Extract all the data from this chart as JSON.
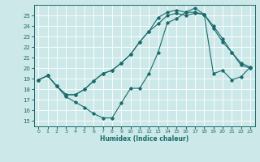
{
  "xlabel": "Humidex (Indice chaleur)",
  "bg_color": "#cce8e8",
  "line_color": "#1a6b6b",
  "grid_color": "#ffffff",
  "xlim": [
    -0.5,
    23.5
  ],
  "ylim": [
    14.5,
    26.0
  ],
  "xticks": [
    0,
    1,
    2,
    3,
    4,
    5,
    6,
    7,
    8,
    9,
    10,
    11,
    12,
    13,
    14,
    15,
    16,
    17,
    18,
    19,
    20,
    21,
    22,
    23
  ],
  "yticks": [
    15,
    16,
    17,
    18,
    19,
    20,
    21,
    22,
    23,
    24,
    25
  ],
  "line1_x": [
    0,
    1,
    2,
    3,
    4,
    5,
    6,
    7,
    8,
    9,
    10,
    11,
    12,
    13,
    14,
    15,
    16,
    17,
    18,
    19,
    20,
    21,
    22,
    23
  ],
  "line1_y": [
    18.9,
    19.3,
    18.3,
    17.3,
    16.8,
    16.3,
    15.7,
    15.3,
    15.3,
    16.7,
    18.1,
    18.1,
    19.5,
    21.5,
    24.3,
    24.7,
    25.3,
    25.3,
    25.1,
    23.8,
    22.5,
    21.5,
    20.3,
    20.0
  ],
  "line2_x": [
    0,
    1,
    2,
    3,
    4,
    5,
    6,
    7,
    8,
    9,
    10,
    11,
    12,
    13,
    14,
    15,
    16,
    17,
    18,
    19,
    20,
    21,
    22,
    23
  ],
  "line2_y": [
    18.9,
    19.3,
    18.3,
    17.5,
    17.5,
    18.0,
    18.8,
    19.5,
    19.8,
    20.5,
    21.3,
    22.5,
    23.5,
    24.8,
    25.3,
    25.5,
    25.3,
    25.7,
    25.1,
    24.0,
    22.8,
    21.5,
    20.5,
    20.1
  ],
  "line3_x": [
    0,
    1,
    2,
    3,
    4,
    5,
    6,
    7,
    8,
    9,
    10,
    11,
    12,
    13,
    14,
    15,
    16,
    17,
    18,
    19,
    20,
    21,
    22,
    23
  ],
  "line3_y": [
    18.9,
    19.3,
    18.3,
    17.5,
    17.5,
    18.0,
    18.8,
    19.5,
    19.8,
    20.5,
    21.3,
    22.5,
    23.5,
    24.2,
    25.0,
    25.2,
    25.0,
    25.2,
    25.1,
    19.5,
    19.8,
    18.9,
    19.2,
    20.1
  ]
}
